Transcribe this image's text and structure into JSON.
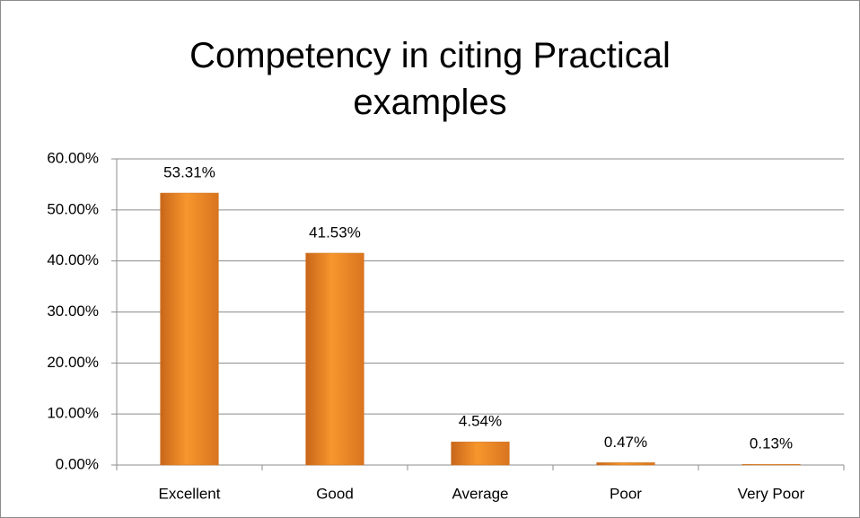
{
  "chart_data": {
    "type": "bar",
    "title": "Competency in citing Practical examples",
    "categories": [
      "Excellent",
      "Good",
      "Average",
      "Poor",
      "Very Poor"
    ],
    "values": [
      53.31,
      41.53,
      4.54,
      0.47,
      0.13
    ],
    "value_labels": [
      "53.31%",
      "41.53%",
      "4.54%",
      "0.47%",
      "0.13%"
    ],
    "color": "#f7962d",
    "ylim": [
      0,
      60
    ],
    "yticks": [
      {
        "value": 0,
        "label": "0.00%"
      },
      {
        "value": 10,
        "label": "10.00%"
      },
      {
        "value": 20,
        "label": "20.00%"
      },
      {
        "value": 30,
        "label": "30.00%"
      },
      {
        "value": 40,
        "label": "40.00%"
      },
      {
        "value": 50,
        "label": "50.00%"
      },
      {
        "value": 60,
        "label": "60.00%"
      }
    ],
    "grid": true
  }
}
